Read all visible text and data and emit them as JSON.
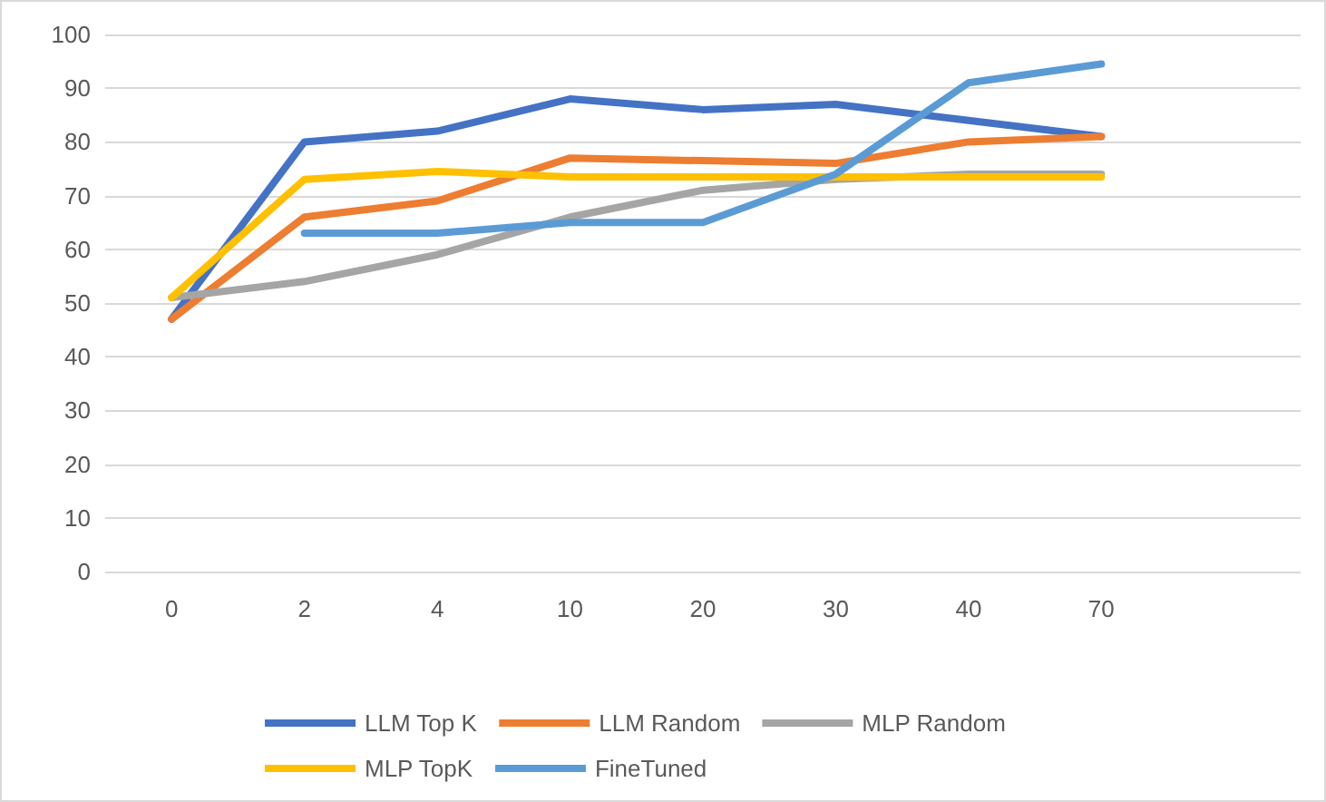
{
  "chart_data": {
    "type": "line",
    "categories": [
      "0",
      "2",
      "4",
      "10",
      "20",
      "30",
      "40",
      "70",
      null
    ],
    "series": [
      {
        "name": "LLM Top K",
        "color": "#4472c4",
        "values": [
          47,
          80,
          82,
          88,
          86,
          87,
          84,
          81,
          null
        ]
      },
      {
        "name": "LLM Random",
        "color": "#ed7d31",
        "values": [
          47,
          66,
          69,
          77,
          76.5,
          76,
          80,
          81,
          null
        ]
      },
      {
        "name": "MLP Random",
        "color": "#a5a5a5",
        "values": [
          51,
          54,
          59,
          66,
          71,
          73,
          74,
          74,
          null
        ]
      },
      {
        "name": "MLP TopK",
        "color": "#ffc000",
        "values": [
          51,
          73,
          74.5,
          73.5,
          73.5,
          73.5,
          73.5,
          73.5,
          null
        ]
      },
      {
        "name": "FineTuned",
        "color": "#5b9bd5",
        "values": [
          null,
          63,
          63,
          65,
          65,
          74,
          91,
          94.5,
          null
        ]
      }
    ],
    "ylim": [
      0,
      100
    ],
    "yticks": [
      0,
      10,
      20,
      30,
      40,
      50,
      60,
      70,
      80,
      90,
      100
    ],
    "grid": "y",
    "legend": "bottom",
    "marker": "none",
    "line_style": "solid"
  }
}
